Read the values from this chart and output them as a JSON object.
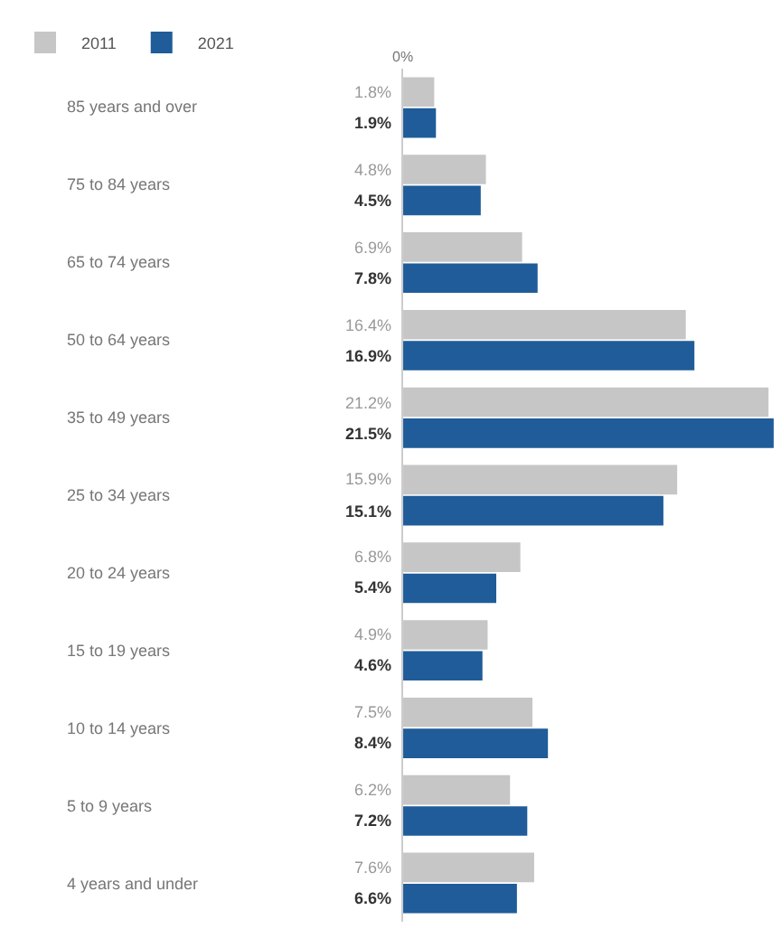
{
  "chart_data": {
    "type": "bar",
    "orientation": "horizontal",
    "categories": [
      "85 years and over",
      "75 to 84 years",
      "65 to 74 years",
      "50 to 64 years",
      "35 to 49 years",
      "25 to 34 years",
      "20 to 24 years",
      "15 to 19 years",
      "10 to 14 years",
      "5 to 9 years",
      "4 years and under"
    ],
    "series": [
      {
        "name": "2011",
        "color": "#c6c6c6",
        "values": [
          1.8,
          4.8,
          6.9,
          16.4,
          21.2,
          15.9,
          6.8,
          4.9,
          7.5,
          6.2,
          7.6
        ],
        "value_labels": [
          "1.8%",
          "4.8%",
          "6.9%",
          "16.4%",
          "21.2%",
          "15.9%",
          "6.8%",
          "4.9%",
          "7.5%",
          "6.2%",
          "7.6%"
        ]
      },
      {
        "name": "2021",
        "color": "#1f5c99",
        "values": [
          1.9,
          4.5,
          7.8,
          16.9,
          21.5,
          15.1,
          5.4,
          4.6,
          8.4,
          7.2,
          6.6
        ],
        "value_labels": [
          "1.9%",
          "4.5%",
          "7.8%",
          "16.9%",
          "21.5%",
          "15.1%",
          "5.4%",
          "4.6%",
          "8.4%",
          "7.2%",
          "6.6%"
        ]
      }
    ],
    "annotations": [
      "0%"
    ],
    "legend": "top left"
  }
}
